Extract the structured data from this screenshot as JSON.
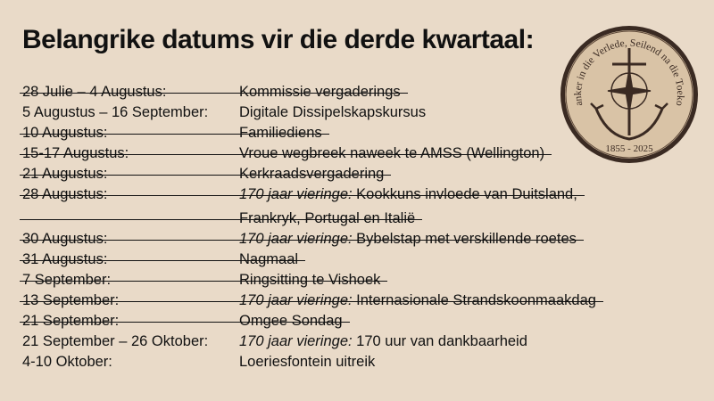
{
  "title": "Belangrike datums vir die derde kwartaal:",
  "rows": [
    {
      "date": "28 Julie – 4 Augustus:",
      "prefix": "",
      "text": "Kommissie vergaderings",
      "struck": true
    },
    {
      "date": "5 Augustus – 16 September:",
      "prefix": "",
      "text": "Digitale Dissipelskapskursus",
      "struck": false
    },
    {
      "date": "10 Augustus:",
      "prefix": "",
      "text": "Familiediens",
      "struck": true
    },
    {
      "date": "15-17 Augustus:",
      "prefix": "",
      "text": "Vroue wegbreek naweek te AMSS (Wellington)",
      "struck": true
    },
    {
      "date": "21 Augustus:",
      "prefix": "",
      "text": "Kerkraadsvergadering",
      "struck": true
    },
    {
      "date": "28 Augustus:",
      "prefix": "170 jaar vieringe:",
      "text": " Kookkuns invloede van Duitsland,",
      "struck": true
    },
    {
      "date": "",
      "prefix": "",
      "text": "Frankryk, Portugal en Italië",
      "struck": true
    },
    {
      "date": "30 Augustus:",
      "prefix": "170 jaar vieringe:",
      "text": " Bybelstap met verskillende roetes",
      "struck": true
    },
    {
      "date": "31 Augustus:",
      "prefix": "",
      "text": "Nagmaal",
      "struck": true
    },
    {
      "date": "7 September:",
      "prefix": "",
      "text": "Ringsitting te Vishoek",
      "struck": true
    },
    {
      "date": "13 September:",
      "prefix": "170 jaar vieringe:",
      "text": " Internasionale Strandskoonmaakdag",
      "struck": true
    },
    {
      "date": "21 September:",
      "prefix": "",
      "text": "Omgee Sondag",
      "struck": true
    },
    {
      "date": "21 September – 26 Oktober:",
      "prefix": "170 jaar vieringe:",
      "text": " 170 uur van dankbaarheid",
      "struck": false
    },
    {
      "date": "4-10 Oktober:",
      "prefix": "",
      "text": "Loeriesfontein uitreik",
      "struck": false
    }
  ],
  "logo": {
    "motto": "Geanker in die Verlede, Seilend na die Toekoms",
    "years": "1855 - 2025"
  }
}
